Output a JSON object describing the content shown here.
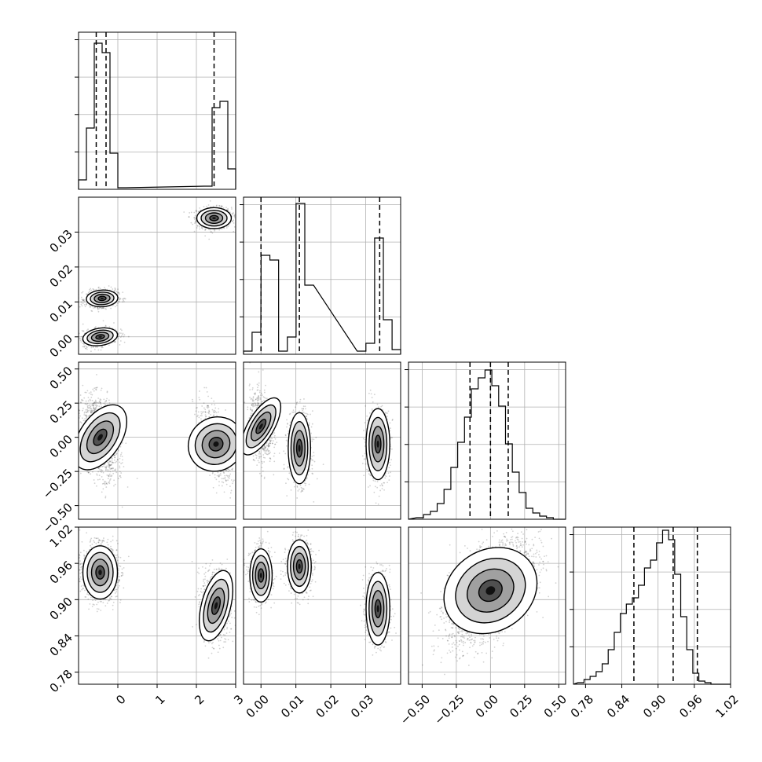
{
  "chart_data": {
    "type": "corner",
    "grid": true,
    "parameters": [
      {
        "lim": [
          -1.0,
          3.0
        ],
        "ticks": [
          0,
          1,
          2,
          3
        ],
        "tick_labels": [
          "0",
          "1",
          "2",
          "3"
        ],
        "hist_x": [
          -0.9,
          -0.7,
          -0.5,
          -0.3,
          -0.1,
          0.1,
          2.3,
          2.5,
          2.7,
          2.9
        ],
        "hist_y": [
          0.06,
          0.39,
          0.93,
          0.87,
          0.23,
          0.01,
          0.02,
          0.52,
          0.56,
          0.13
        ],
        "quantiles": [
          -0.55,
          -0.3,
          2.45
        ]
      },
      {
        "lim": [
          -0.005,
          0.04
        ],
        "ticks": [
          0.0,
          0.01,
          0.02,
          0.03
        ],
        "tick_labels": [
          "0.00",
          "0.01",
          "0.02",
          "0.03"
        ],
        "hist_x": [
          -0.0038,
          -0.0013,
          0.0013,
          0.0038,
          0.0063,
          0.0088,
          0.0113,
          0.0138,
          0.0288,
          0.0313,
          0.0338,
          0.0363,
          0.0388
        ],
        "hist_y": [
          0.02,
          0.14,
          0.63,
          0.6,
          0.02,
          0.11,
          0.96,
          0.44,
          0.02,
          0.07,
          0.74,
          0.22,
          0.03
        ],
        "quantiles": [
          0.0,
          0.011,
          0.034
        ]
      },
      {
        "lim": [
          -0.6,
          0.55
        ],
        "ticks": [
          -0.5,
          -0.25,
          0.0,
          0.25,
          0.5
        ],
        "tick_labels": [
          "−0.50",
          "−0.25",
          "0.00",
          "0.25",
          "0.50"
        ],
        "hist_x": [
          -0.515,
          -0.465,
          -0.415,
          -0.365,
          -0.315,
          -0.265,
          -0.215,
          -0.165,
          -0.115,
          -0.065,
          -0.015,
          0.035,
          0.085,
          0.135,
          0.185,
          0.235,
          0.285,
          0.335,
          0.385,
          0.435,
          0.485
        ],
        "hist_y": [
          0.01,
          0.03,
          0.05,
          0.1,
          0.19,
          0.33,
          0.49,
          0.65,
          0.83,
          0.9,
          0.95,
          0.85,
          0.72,
          0.48,
          0.3,
          0.17,
          0.07,
          0.04,
          0.02,
          0.01,
          0.0
        ],
        "quantiles": [
          -0.15,
          0.0,
          0.13
        ]
      },
      {
        "lim": [
          0.76,
          1.02
        ],
        "ticks": [
          0.78,
          0.84,
          0.9,
          0.96,
          1.02
        ],
        "tick_labels": [
          "0.78",
          "0.84",
          "0.90",
          "0.96",
          "1.02"
        ],
        "hist_x": [
          0.7725,
          0.7825,
          0.7925,
          0.8025,
          0.8125,
          0.8225,
          0.8325,
          0.8425,
          0.8525,
          0.8625,
          0.8725,
          0.8825,
          0.8925,
          0.9025,
          0.9125,
          0.9225,
          0.9325,
          0.9425,
          0.9525,
          0.9625,
          0.9725,
          0.9825,
          0.9925,
          1.0025,
          1.0125
        ],
        "hist_y": [
          0.01,
          0.03,
          0.05,
          0.08,
          0.13,
          0.22,
          0.33,
          0.45,
          0.51,
          0.55,
          0.63,
          0.74,
          0.79,
          0.9,
          0.98,
          0.92,
          0.7,
          0.43,
          0.22,
          0.07,
          0.02,
          0.01,
          0.0,
          0.0,
          0.0
        ],
        "quantiles": [
          0.86,
          0.925,
          0.965
        ]
      }
    ],
    "pair_blobs": [
      {
        "x": 0,
        "y": 1,
        "blobs": [
          {
            "cx": 2.45,
            "cy": 0.034,
            "sx": 0.22,
            "sy": 0.0015,
            "rho": 0.0,
            "n": 900
          },
          {
            "cx": -0.4,
            "cy": 0.011,
            "sx": 0.2,
            "sy": 0.0012,
            "rho": 0.1,
            "n": 800
          },
          {
            "cx": -0.45,
            "cy": 0.0,
            "sx": 0.22,
            "sy": 0.0013,
            "rho": 0.3,
            "n": 800
          }
        ]
      },
      {
        "x": 0,
        "y": 2,
        "blobs": [
          {
            "cx": -0.45,
            "cy": 0.0,
            "sx": 0.22,
            "sy": 0.14,
            "rho": -0.3,
            "n": 1500
          },
          {
            "cx": 2.5,
            "cy": -0.05,
            "sx": 0.2,
            "sy": 0.13,
            "rho": -0.6,
            "n": 900
          }
        ]
      },
      {
        "x": 0,
        "y": 3,
        "blobs": [
          {
            "cx": -0.45,
            "cy": 0.945,
            "sx": 0.22,
            "sy": 0.022,
            "rho": 0.0,
            "n": 1500
          },
          {
            "cx": 2.5,
            "cy": 0.89,
            "sx": 0.18,
            "sy": 0.03,
            "rho": -0.1,
            "n": 900
          }
        ]
      },
      {
        "x": 1,
        "y": 2,
        "blobs": [
          {
            "cx": 0.0,
            "cy": 0.08,
            "sx": 0.0016,
            "sy": 0.12,
            "rho": -0.2,
            "n": 800
          },
          {
            "cx": 0.011,
            "cy": -0.08,
            "sx": 0.0016,
            "sy": 0.13,
            "rho": 0.0,
            "n": 800
          },
          {
            "cx": 0.0335,
            "cy": -0.05,
            "sx": 0.0017,
            "sy": 0.13,
            "rho": 0.0,
            "n": 800
          }
        ]
      },
      {
        "x": 1,
        "y": 3,
        "blobs": [
          {
            "cx": 0.0,
            "cy": 0.94,
            "sx": 0.0016,
            "sy": 0.022,
            "rho": 0.0,
            "n": 800
          },
          {
            "cx": 0.011,
            "cy": 0.955,
            "sx": 0.0017,
            "sy": 0.022,
            "rho": 0.0,
            "n": 800
          },
          {
            "cx": 0.0335,
            "cy": 0.885,
            "sx": 0.0017,
            "sy": 0.03,
            "rho": 0.0,
            "n": 800
          }
        ]
      },
      {
        "x": 2,
        "y": 3,
        "blobs": [
          {
            "cx": 0.0,
            "cy": 0.915,
            "sx": 0.15,
            "sy": 0.04,
            "rho": 0.55,
            "n": 3000
          }
        ]
      }
    ]
  }
}
